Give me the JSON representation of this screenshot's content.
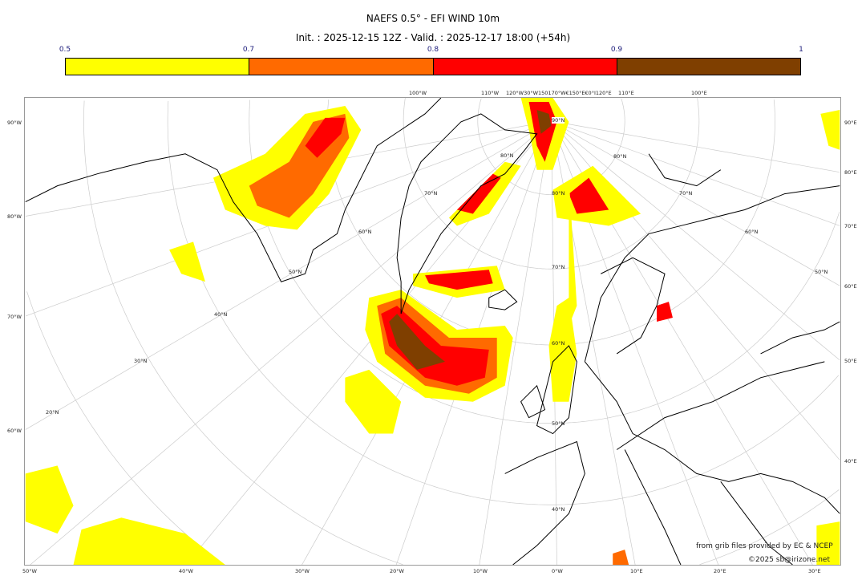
{
  "title": "NAEFS 0.5° - EFI WIND 10m",
  "subtitle": "Init. : 2025-12-15 12Z - Valid. : 2025-12-17 18:00 (+54h)",
  "colorbar": {
    "ticks": [
      "0.5",
      "0.7",
      "0.8",
      "0.9",
      "1"
    ],
    "bins": [
      {
        "from": 0.5,
        "to": 0.7,
        "color": "#ffff00"
      },
      {
        "from": 0.7,
        "to": 0.8,
        "color": "#ff6a00"
      },
      {
        "from": 0.8,
        "to": 0.9,
        "color": "#ff0000"
      },
      {
        "from": 0.9,
        "to": 1.0,
        "color": "#7f3f00"
      }
    ]
  },
  "axes": {
    "left": [
      "90°W",
      "80°W",
      "70°W",
      "60°W"
    ],
    "right": [
      "90°E",
      "80°E",
      "70°E",
      "60°E",
      "50°E",
      "40°E"
    ],
    "bottom": [
      "50°W",
      "40°W",
      "30°W",
      "20°W",
      "10°W",
      "0°W",
      "10°E",
      "20°E",
      "30°E"
    ],
    "top": [
      "100°W",
      "110°W",
      "120°W30°W150170°W€150°E€0°I120°E",
      "110°E",
      "100°E"
    ],
    "interior": [
      "90°N",
      "80°N",
      "70°N",
      "60°N",
      "50°N",
      "40°N",
      "60°N",
      "50°N",
      "40°N",
      "30°N",
      "20°N",
      "70°N",
      "80°N",
      "80°N",
      "70°N",
      "60°N",
      "50°N"
    ]
  },
  "credits": {
    "source": "from grib files provided by EC & NCEP",
    "copyright": "©2025 sb@irizone.net"
  }
}
